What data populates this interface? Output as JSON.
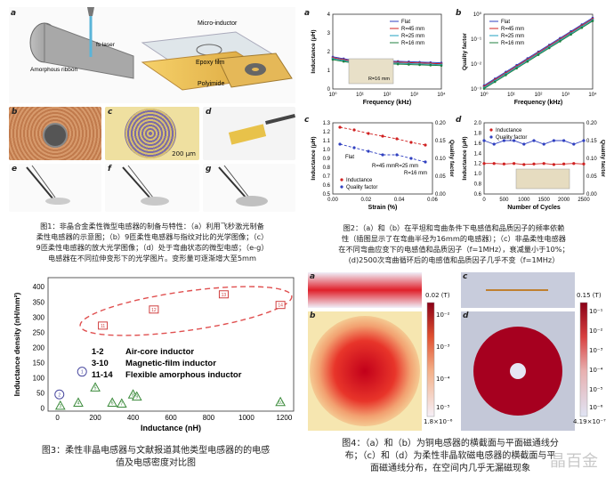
{
  "fig1": {
    "labels": {
      "a": "a",
      "b": "b",
      "c": "c",
      "d": "d",
      "e": "e",
      "f": "f",
      "g": "g"
    },
    "schematic_texts": {
      "micro_inductor": "Micro-inductor",
      "amorphous_ribbon": "Amorphous ribbon",
      "fs_laser": "fs laser",
      "epoxy_film": "Epoxy film",
      "polyimide": "Polyimide"
    },
    "scale_bar": "200 μm",
    "caption_lines": [
      "图1：非晶合金柔性微型电感器的制备与特性：（a）利用飞秒激光制备",
      "柔性电感器的示意图；（b）9匝柔性电感器与指纹对比的光学图像；（c）",
      "9匝柔性电感器的放大光学图像；（d）处于弯曲状态的微型电感；（e-g）",
      "电感器在不同拉伸变形下的光学图片。变形量可逐渐增大至5mm"
    ]
  },
  "fig2": {
    "labels": {
      "a": "a",
      "b": "b",
      "c": "c",
      "d": "d"
    },
    "caption_lines": [
      "图2：（a）和（b）在平坦和弯曲条件下电感值和品质因子的频率依赖",
      "性（插图显示了在弯曲半径为16mm的电感器）；（c）非晶柔性电感器",
      "在不同弯曲应变下的电感值和品质因子（f=1MHz），衰减量小于10%；",
      "(d)2500次弯曲循环后的电感值和品质因子几乎不变（f=1MHz）"
    ]
  },
  "fig3": {
    "caption_lines": [
      "图3：柔性非晶电感器与文献报道其他类型电感器的的电感",
      "值及电感密度对比图"
    ],
    "legend": [
      {
        "range": "1-2",
        "text": "Air-core inductor"
      },
      {
        "range": "3-10",
        "text": "Magnetic-film inductor"
      },
      {
        "range": "11-14",
        "text": "Flexible amorphous inductor"
      }
    ]
  },
  "fig4": {
    "labels": {
      "a": "a",
      "b": "b",
      "c": "c",
      "d": "d"
    },
    "colorbar_left": {
      "top": "0.02 (T)",
      "ticks": [
        "10⁻²",
        "10⁻³",
        "10⁻⁴",
        "10⁻⁵"
      ],
      "bottom": "1.8×10⁻⁶"
    },
    "colorbar_right": {
      "top": "0.15 (T)",
      "ticks": [
        "10⁻¹",
        "10⁻²",
        "10⁻³",
        "10⁻⁴",
        "10⁻⁵",
        "10⁻⁶"
      ],
      "bottom": "4.19×10⁻⁷"
    },
    "caption_lines": [
      "图4：（a）和（b）为铜电感器的横截面与平面磁通线分",
      "布；（c）和（d）为柔性非晶软磁电感器的横截面与平",
      "面磁通线分布，在空间内几乎无漏磁现象"
    ]
  },
  "watermark": "晶百金",
  "chart_data": [
    {
      "type": "line",
      "id": "fig2a",
      "xlabel": "Frequency (kHz)",
      "ylabel": "Inductance (μH)",
      "x_ticks": [
        "10⁰",
        "10¹",
        "10²",
        "10³",
        "10⁴"
      ],
      "y_ticks": [
        "0",
        "1",
        "2",
        "3",
        "4"
      ],
      "ylim": [
        0,
        4
      ],
      "xscale": "log",
      "series": [
        {
          "name": "Flat",
          "color": "#3040c0",
          "values": [
            1.6,
            1.55,
            1.5,
            1.45,
            1.4
          ]
        },
        {
          "name": "R=45 mm",
          "color": "#d02020",
          "values": [
            1.55,
            1.5,
            1.45,
            1.4,
            1.35
          ]
        },
        {
          "name": "R=25 mm",
          "color": "#20a0c0",
          "values": [
            1.5,
            1.45,
            1.4,
            1.35,
            1.3
          ]
        },
        {
          "name": "R=16 mm",
          "color": "#208040",
          "values": [
            1.45,
            1.4,
            1.35,
            1.3,
            1.25
          ]
        }
      ],
      "inset_label": "R=16 mm"
    },
    {
      "type": "line",
      "id": "fig2b",
      "xlabel": "Frequency (kHz)",
      "ylabel": "Quality factor",
      "x_ticks": [
        "10⁰",
        "10¹",
        "10²",
        "10³",
        "10⁴"
      ],
      "y_ticks": [
        "10⁻³",
        "10⁻²",
        "10⁻¹",
        "10⁰"
      ],
      "yscale": "log",
      "series": [
        {
          "name": "Flat",
          "color": "#3040c0"
        },
        {
          "name": "R=45 mm",
          "color": "#d02020"
        },
        {
          "name": "R=25 mm",
          "color": "#20a0c0"
        },
        {
          "name": "R=16 mm",
          "color": "#208040"
        }
      ]
    },
    {
      "type": "line",
      "id": "fig2c",
      "xlabel": "Strain (%)",
      "ylabel": "Inductance (μH)",
      "y2label": "Quality factor",
      "x_ticks": [
        "0.00",
        "0.02",
        "0.04",
        "0.06"
      ],
      "y_ticks": [
        "0.5",
        "0.6",
        "0.7",
        "0.8",
        "0.9",
        "1.0",
        "1.1",
        "1.2",
        "1.3"
      ],
      "y2_ticks": [
        "0.00",
        "0.05",
        "0.10",
        "0.15",
        "0.20"
      ],
      "x": [
        0.0,
        0.01,
        0.02,
        0.03,
        0.04,
        0.05,
        0.06
      ],
      "series": [
        {
          "name": "Inductance",
          "color": "#d02020",
          "axis": "left",
          "values": [
            1.25,
            1.22,
            1.18,
            1.15,
            1.12,
            1.08,
            1.05
          ]
        },
        {
          "name": "Quality factor",
          "color": "#3040c0",
          "axis": "right",
          "values": [
            0.14,
            0.13,
            0.12,
            0.11,
            0.11,
            0.1,
            0.09
          ]
        }
      ],
      "annotations": [
        "Flat",
        "R=45 mm",
        "R=25 mm",
        "R=16 mm"
      ]
    },
    {
      "type": "line",
      "id": "fig2d",
      "xlabel": "Number of Cycles",
      "ylabel": "Inductance (μH)",
      "y2label": "Quality factor",
      "x_ticks": [
        "0",
        "500",
        "1000",
        "1500",
        "2000",
        "2500"
      ],
      "y_ticks": [
        "0.6",
        "0.8",
        "1.0",
        "1.2",
        "1.4",
        "1.6",
        "1.8",
        "2.0"
      ],
      "y2_ticks": [
        "0.00",
        "0.05",
        "0.10",
        "0.15",
        "0.20"
      ],
      "x": [
        0,
        250,
        500,
        750,
        1000,
        1250,
        1500,
        1750,
        2000,
        2250,
        2500
      ],
      "series": [
        {
          "name": "Inductance",
          "color": "#d02020",
          "axis": "left",
          "values": [
            1.2,
            1.2,
            1.19,
            1.2,
            1.18,
            1.19,
            1.2,
            1.18,
            1.19,
            1.2,
            1.19
          ]
        },
        {
          "name": "Quality factor",
          "color": "#3040c0",
          "axis": "right",
          "values": [
            0.15,
            0.14,
            0.15,
            0.15,
            0.14,
            0.15,
            0.14,
            0.15,
            0.15,
            0.14,
            0.15
          ]
        }
      ]
    },
    {
      "type": "scatter",
      "id": "fig3",
      "xlabel": "Inductance (nH)",
      "ylabel": "Inductance density (nH/mm²)",
      "xlim": [
        -50,
        1250
      ],
      "ylim": [
        -10,
        430
      ],
      "x_ticks": [
        0,
        200,
        400,
        600,
        800,
        1000,
        1200
      ],
      "y_ticks": [
        0,
        50,
        100,
        150,
        200,
        250,
        300,
        350,
        400
      ],
      "series": [
        {
          "name": "Air-core inductor",
          "marker": "circle",
          "color": "#4a4aa0",
          "points": [
            {
              "label": "1",
              "x": 130,
              "y": 120
            },
            {
              "label": "2",
              "x": 10,
              "y": 45
            }
          ]
        },
        {
          "name": "Magnetic-film inductor",
          "marker": "triangle",
          "color": "#3a8a3a",
          "points": [
            {
              "label": "3",
              "x": 15,
              "y": 8
            },
            {
              "label": "4",
              "x": 110,
              "y": 18
            },
            {
              "label": "5",
              "x": 200,
              "y": 68
            },
            {
              "label": "6",
              "x": 290,
              "y": 18
            },
            {
              "label": "7",
              "x": 340,
              "y": 15
            },
            {
              "label": "8",
              "x": 400,
              "y": 45
            },
            {
              "label": "9",
              "x": 420,
              "y": 38
            },
            {
              "label": "10",
              "x": 1180,
              "y": 20
            }
          ]
        },
        {
          "name": "Flexible amorphous inductor",
          "marker": "square",
          "color": "#d04040",
          "points": [
            {
              "label": "11",
              "x": 240,
              "y": 272
            },
            {
              "label": "12",
              "x": 510,
              "y": 325
            },
            {
              "label": "13",
              "x": 880,
              "y": 375
            },
            {
              "label": "14",
              "x": 1180,
              "y": 340
            }
          ]
        }
      ]
    }
  ]
}
